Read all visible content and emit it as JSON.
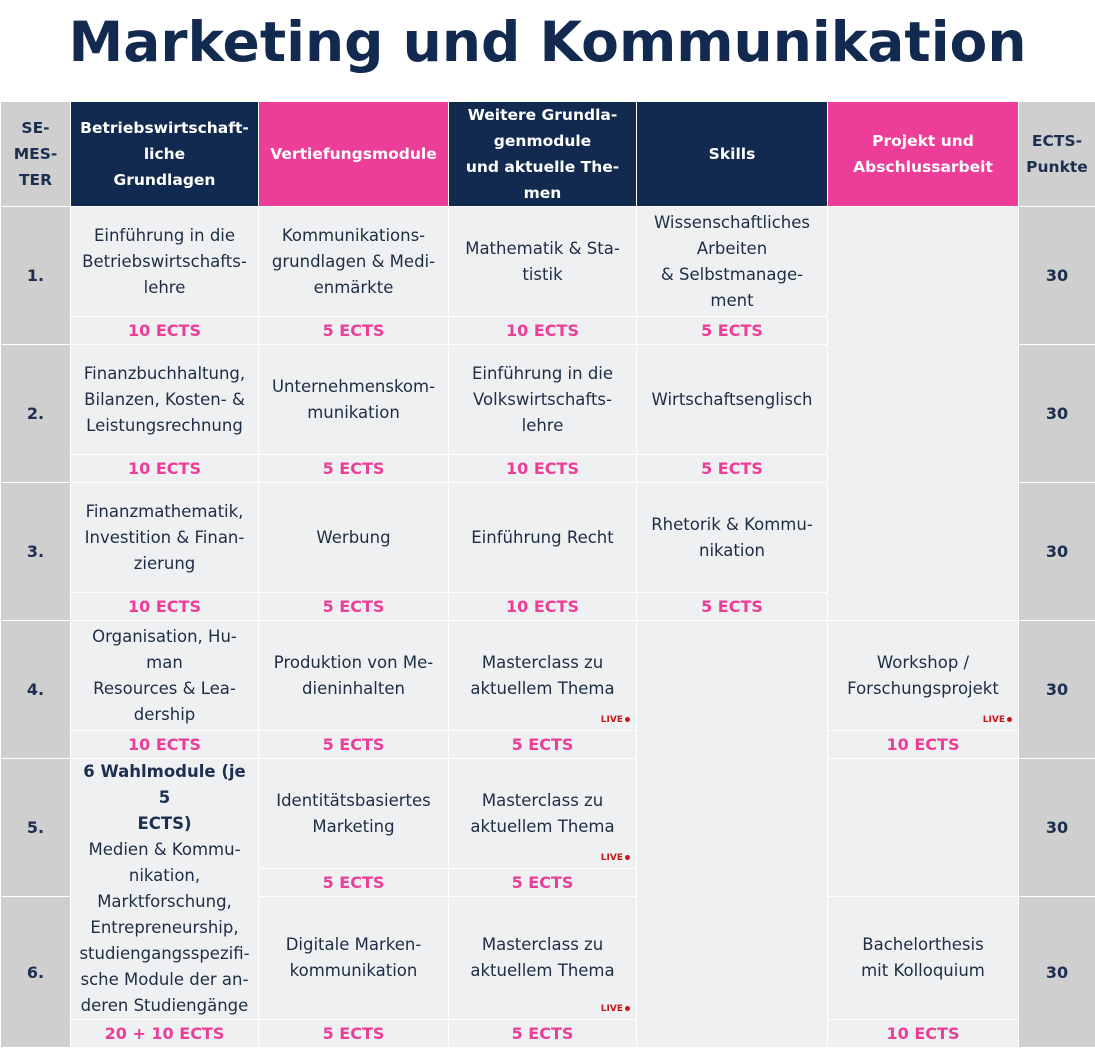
{
  "title": "Marketing und Kommunikation",
  "headers": {
    "semester": "SE-\nMES-\nTER",
    "bwl": "Betriebswirtschaft-\nliche\nGrundlagen",
    "vertiefung": "Vertiefungsmodule",
    "weitere": "Weitere Grundla-\ngenmodule\nund aktuelle The-\nmen",
    "skills": "Skills",
    "projekt": "Projekt und\nAbschlussarbeit",
    "ects": "ECTS-\nPunkte"
  },
  "semesters": [
    {
      "label": "1.",
      "total": "30",
      "bwl": "Einführung in die\nBetriebswirtschafts-\nlehre",
      "bwl_ects": "10 ECTS",
      "vert": "Kommunikations-\ngrundlagen  & Medi-\nenmärkte",
      "vert_ects": "5 ECTS",
      "weitere": "Mathematik & Sta-\ntistik",
      "weitere_ects": "10 ECTS",
      "skills": "Wissenschaftliches\nArbeiten\n& Selbstmanage-\nment",
      "skills_ects": "5 ECTS"
    },
    {
      "label": "2.",
      "total": "30",
      "bwl": "Finanzbuchhaltung,\nBilanzen, Kosten- &\nLeistungsrechnung",
      "bwl_ects": "10 ECTS",
      "vert": "Unternehmenskom-\nmunikation",
      "vert_ects": "5 ECTS",
      "weitere": "Einführung in die\nVolkswirtschafts-\nlehre",
      "weitere_ects": "10 ECTS",
      "skills": "Wirtschaftsenglisch",
      "skills_ects": "5 ECTS"
    },
    {
      "label": "3.",
      "total": "30",
      "bwl": "Finanzmathematik,\nInvestition & Finan-\nzierung",
      "bwl_ects": "10 ECTS",
      "vert": "Werbung",
      "vert_ects": "5 ECTS",
      "weitere": "Einführung Recht",
      "weitere_ects": "10 ECTS",
      "skills": "Rhetorik & Kommu-\nnikation",
      "skills_ects": "5 ECTS"
    },
    {
      "label": "4.",
      "total": "30",
      "bwl": "Organisation, Hu-\nman\nResources & Lea-\ndership",
      "bwl_ects": "10 ECTS",
      "vert": "Produktion von Me-\ndieninhalten",
      "vert_ects": "5 ECTS",
      "weitere": "Masterclass zu\naktuellem Thema",
      "weitere_ects": "5 ECTS",
      "projekt": "Workshop /\nForschungsprojekt",
      "projekt_ects": "10 ECTS"
    },
    {
      "label": "5.",
      "total": "30",
      "vert": "Identitätsbasiertes\nMarketing",
      "vert_ects": "5 ECTS",
      "weitere": "Masterclass zu\naktuellem Thema",
      "weitere_ects": "5 ECTS"
    },
    {
      "label": "6.",
      "total": "30",
      "vert": "Digitale Marken-\nkommunikation",
      "vert_ects": "5 ECTS",
      "weitere": "Masterclass zu\naktuellem Thema",
      "weitere_ects": "5 ECTS",
      "projekt": "Bachelorthesis\nmit Kolloquium",
      "projekt_ects": "10 ECTS"
    }
  ],
  "wahl": {
    "heading": "6 Wahlmodule (je 5\nECTS)",
    "text": "Medien & Kommu-\nnikation,\nMarktforschung,\nEntrepreneurship,\nstudiengangsspezifi-\nsche Module der an-\nderen Studiengänge",
    "ects": "20 + 10 ECTS"
  },
  "live_label": "LIVE",
  "colors": {
    "navy": "#122a4f",
    "pink": "#ec3e98",
    "grey": "#cfcfcf",
    "cell": "#eef0f2",
    "live": "#c41a1a"
  }
}
